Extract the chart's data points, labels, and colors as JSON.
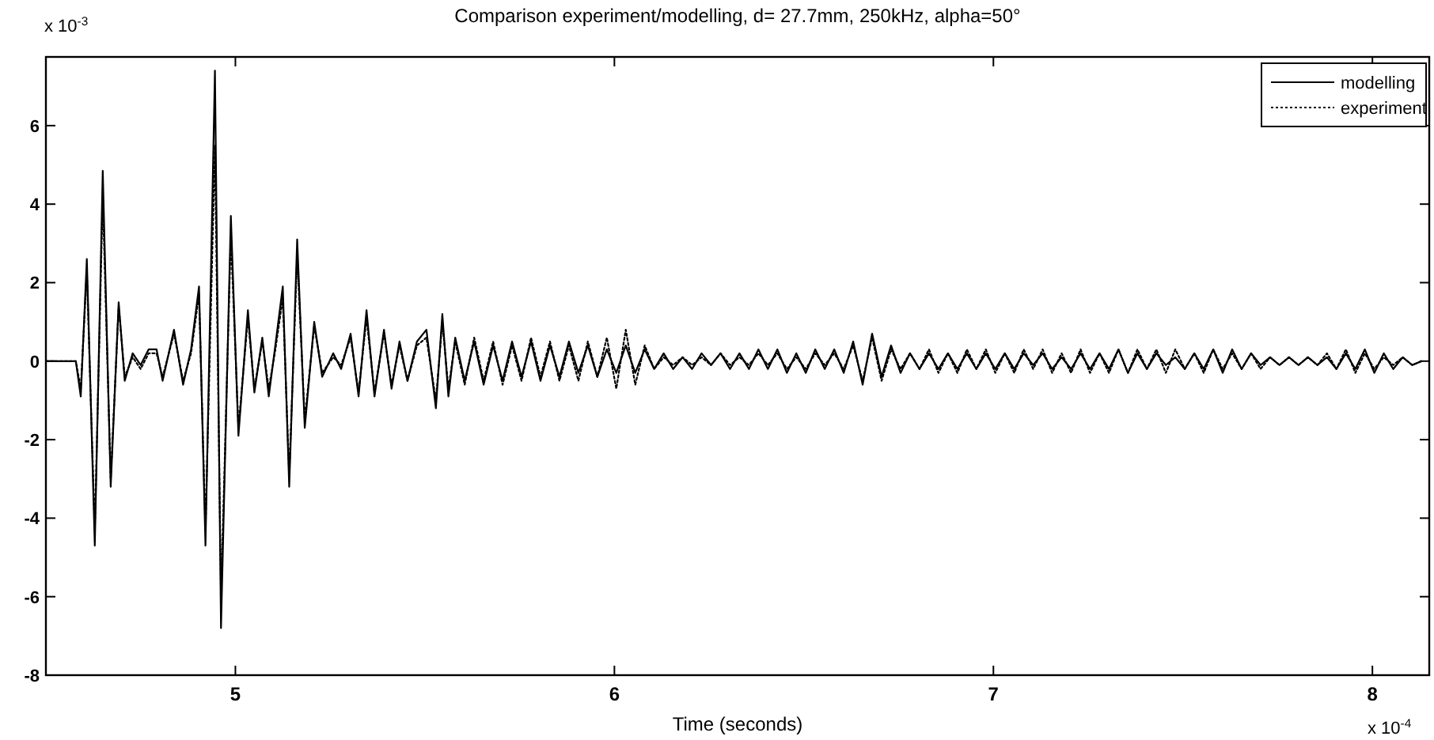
{
  "chart_data": {
    "type": "line",
    "title": "Comparison experiment/modelling, d= 27.7mm, 250kHz, alpha=50°",
    "xlabel": "Time (seconds)",
    "annotations": [
      "x 10$^{-3}$",
      "x 10$^{-4}$"
    ],
    "xlim": [
      4.5,
      8.15
    ],
    "xticks": [
      5,
      6,
      7,
      8
    ],
    "ylim": [
      -8,
      7.75
    ],
    "yticks": [
      -8,
      -6,
      -4,
      -2,
      0,
      2,
      4,
      6
    ],
    "grid": false,
    "legend": "top right",
    "marker": "none",
    "x": [
      4.5,
      4.579,
      4.592,
      4.608,
      4.629,
      4.65,
      4.671,
      4.692,
      4.708,
      4.729,
      4.75,
      4.771,
      4.792,
      4.808,
      4.838,
      4.862,
      4.883,
      4.904,
      4.921,
      4.946,
      4.962,
      4.988,
      5.008,
      5.033,
      5.05,
      5.071,
      5.088,
      5.104,
      5.125,
      5.142,
      5.163,
      5.183,
      5.208,
      5.229,
      5.258,
      5.279,
      5.304,
      5.325,
      5.346,
      5.367,
      5.392,
      5.412,
      5.433,
      5.454,
      5.479,
      5.504,
      5.529,
      5.546,
      5.562,
      5.58,
      5.605,
      5.63,
      5.655,
      5.68,
      5.705,
      5.73,
      5.755,
      5.78,
      5.805,
      5.83,
      5.855,
      5.88,
      5.905,
      5.93,
      5.955,
      5.98,
      6.005,
      6.03,
      6.055,
      6.08,
      6.105,
      6.13,
      6.155,
      6.18,
      6.205,
      6.23,
      6.255,
      6.28,
      6.305,
      6.33,
      6.355,
      6.38,
      6.405,
      6.43,
      6.455,
      6.48,
      6.505,
      6.53,
      6.555,
      6.58,
      6.605,
      6.63,
      6.655,
      6.68,
      6.705,
      6.73,
      6.755,
      6.78,
      6.805,
      6.83,
      6.855,
      6.88,
      6.905,
      6.93,
      6.955,
      6.98,
      7.005,
      7.03,
      7.055,
      7.08,
      7.105,
      7.13,
      7.155,
      7.18,
      7.205,
      7.23,
      7.255,
      7.28,
      7.305,
      7.33,
      7.355,
      7.38,
      7.405,
      7.43,
      7.455,
      7.48,
      7.505,
      7.53,
      7.555,
      7.58,
      7.605,
      7.63,
      7.655,
      7.68,
      7.705,
      7.73,
      7.755,
      7.78,
      7.805,
      7.83,
      7.855,
      7.88,
      7.905,
      7.93,
      7.955,
      7.98,
      8.005,
      8.03,
      8.055,
      8.08,
      8.105,
      8.13
    ],
    "series": [
      {
        "name": "modelling",
        "color": "#000000",
        "line_style": "solid",
        "values": [
          0,
          0,
          -0.9,
          2.6,
          -4.7,
          4.85,
          -3.2,
          1.5,
          -0.5,
          0.2,
          -0.1,
          0.3,
          0.3,
          -0.5,
          0.8,
          -0.6,
          0.3,
          1.9,
          -4.7,
          7.4,
          -6.8,
          3.7,
          -1.9,
          1.3,
          -0.8,
          0.6,
          -0.9,
          0.3,
          1.9,
          -3.2,
          3.1,
          -1.7,
          1.0,
          -0.4,
          0.2,
          -0.2,
          0.7,
          -0.9,
          1.3,
          -0.9,
          0.8,
          -0.7,
          0.5,
          -0.5,
          0.5,
          0.8,
          -1.2,
          1.2,
          -0.9,
          0.6,
          -0.5,
          0.5,
          -0.6,
          0.4,
          -0.5,
          0.5,
          -0.4,
          0.5,
          -0.5,
          0.4,
          -0.4,
          0.5,
          -0.3,
          0.4,
          -0.4,
          0.3,
          -0.3,
          0.4,
          -0.3,
          0.3,
          -0.2,
          0.2,
          -0.2,
          0.1,
          -0.2,
          0.2,
          -0.1,
          0.2,
          -0.2,
          0.2,
          -0.2,
          0.3,
          -0.2,
          0.3,
          -0.3,
          0.2,
          -0.3,
          0.3,
          -0.2,
          0.3,
          -0.3,
          0.5,
          -0.6,
          0.7,
          -0.4,
          0.4,
          -0.3,
          0.2,
          -0.2,
          0.2,
          -0.2,
          0.2,
          -0.2,
          0.2,
          -0.2,
          0.2,
          -0.2,
          0.2,
          -0.2,
          0.2,
          -0.1,
          0.2,
          -0.2,
          0.1,
          -0.2,
          0.2,
          -0.2,
          0.2,
          -0.2,
          0.3,
          -0.3,
          0.2,
          -0.2,
          0.2,
          -0.1,
          0.1,
          -0.2,
          0.2,
          -0.2,
          0.3,
          -0.3,
          0.3,
          -0.2,
          0.2,
          -0.1,
          0.1,
          -0.1,
          0.1,
          -0.1,
          0.1,
          -0.1,
          0.1,
          -0.2,
          0.2,
          -0.2,
          0.3,
          -0.3,
          0.2,
          -0.2,
          0.1,
          -0.1,
          0
        ]
      },
      {
        "name": "experiment",
        "color": "#000000",
        "line_style": "dotted",
        "values": [
          0,
          0,
          -0.7,
          2.3,
          -4.3,
          4.2,
          -3.0,
          1.4,
          -0.4,
          0.1,
          -0.2,
          0.2,
          0.2,
          -0.4,
          0.7,
          -0.5,
          0.2,
          1.7,
          -4.3,
          5.5,
          -6.0,
          3.2,
          -1.7,
          1.1,
          -0.7,
          0.5,
          -0.7,
          0.2,
          1.6,
          -2.9,
          2.7,
          -1.5,
          0.9,
          -0.3,
          0.1,
          -0.1,
          0.6,
          -0.8,
          1.1,
          -0.8,
          0.7,
          -0.6,
          0.4,
          -0.5,
          0.4,
          0.6,
          -1.0,
          1.0,
          -0.7,
          0.5,
          -0.6,
          0.6,
          -0.5,
          0.5,
          -0.6,
          0.4,
          -0.5,
          0.6,
          -0.4,
          0.5,
          -0.5,
          0.4,
          -0.5,
          0.5,
          -0.4,
          0.6,
          -0.7,
          0.8,
          -0.6,
          0.4,
          -0.2,
          0.1,
          -0.1,
          0.1,
          -0.1,
          0.1,
          -0.1,
          0.2,
          -0.1,
          0.1,
          -0.1,
          0.2,
          -0.1,
          0.2,
          -0.2,
          0.1,
          -0.2,
          0.2,
          -0.1,
          0.2,
          -0.2,
          0.4,
          -0.5,
          0.6,
          -0.5,
          0.3,
          -0.2,
          0.2,
          -0.2,
          0.3,
          -0.3,
          0.2,
          -0.3,
          0.3,
          -0.2,
          0.3,
          -0.3,
          0.2,
          -0.3,
          0.3,
          -0.2,
          0.3,
          -0.3,
          0.2,
          -0.3,
          0.3,
          -0.3,
          0.2,
          -0.3,
          0.3,
          -0.3,
          0.3,
          -0.2,
          0.3,
          -0.3,
          0.3,
          -0.2,
          0.2,
          -0.3,
          0.3,
          -0.2,
          0.2,
          -0.2,
          0.2,
          -0.2,
          0.1,
          -0.1,
          0.1,
          -0.1,
          0.1,
          -0.1,
          0.2,
          -0.2,
          0.3,
          -0.3,
          0.2,
          -0.2,
          0.1,
          -0.1,
          0.1,
          -0.1,
          0
        ]
      }
    ]
  }
}
